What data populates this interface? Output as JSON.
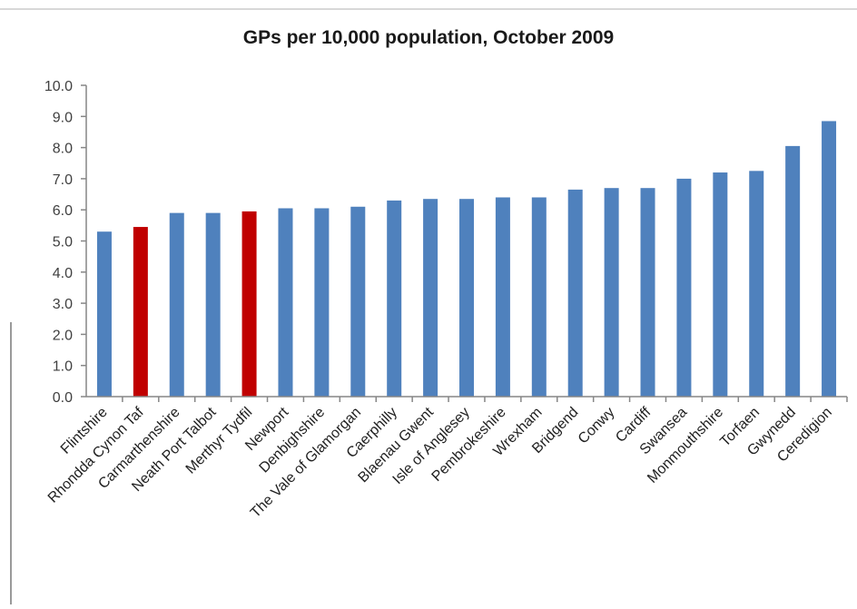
{
  "chart_data": {
    "type": "bar",
    "title": "GPs per 10,000 population, October 2009",
    "xlabel": "",
    "ylabel": "",
    "ylim": [
      0,
      10
    ],
    "yticks": [
      "0.0",
      "1.0",
      "2.0",
      "3.0",
      "4.0",
      "5.0",
      "6.0",
      "7.0",
      "8.0",
      "9.0",
      "10.0"
    ],
    "grid": false,
    "legend": "none",
    "categories": [
      "Flintshire",
      "Rhondda Cynon Taf",
      "Carmarthenshire",
      "Neath Port Talbot",
      "Merthyr Tydfil",
      "Newport",
      "Denbighshire",
      "The Vale of Glamorgan",
      "Caerphilly",
      "Blaenau Gwent",
      "Isle of Anglesey",
      "Pembrokeshire",
      "Wrexham",
      "Bridgend",
      "Conwy",
      "Cardiff",
      "Swansea",
      "Monmouthshire",
      "Torfaen",
      "Gwynedd",
      "Ceredigion"
    ],
    "values": [
      5.3,
      5.45,
      5.9,
      5.9,
      5.95,
      6.05,
      6.05,
      6.1,
      6.3,
      6.35,
      6.35,
      6.4,
      6.4,
      6.65,
      6.7,
      6.7,
      7.0,
      7.2,
      7.25,
      8.05,
      8.85
    ],
    "highlighted": [
      "Rhondda Cynon Taf",
      "Merthyr Tydfil"
    ],
    "colors": {
      "bar": "#4f81bd",
      "highlight": "#c00000",
      "axis": "#868686",
      "text": "#404040"
    }
  }
}
